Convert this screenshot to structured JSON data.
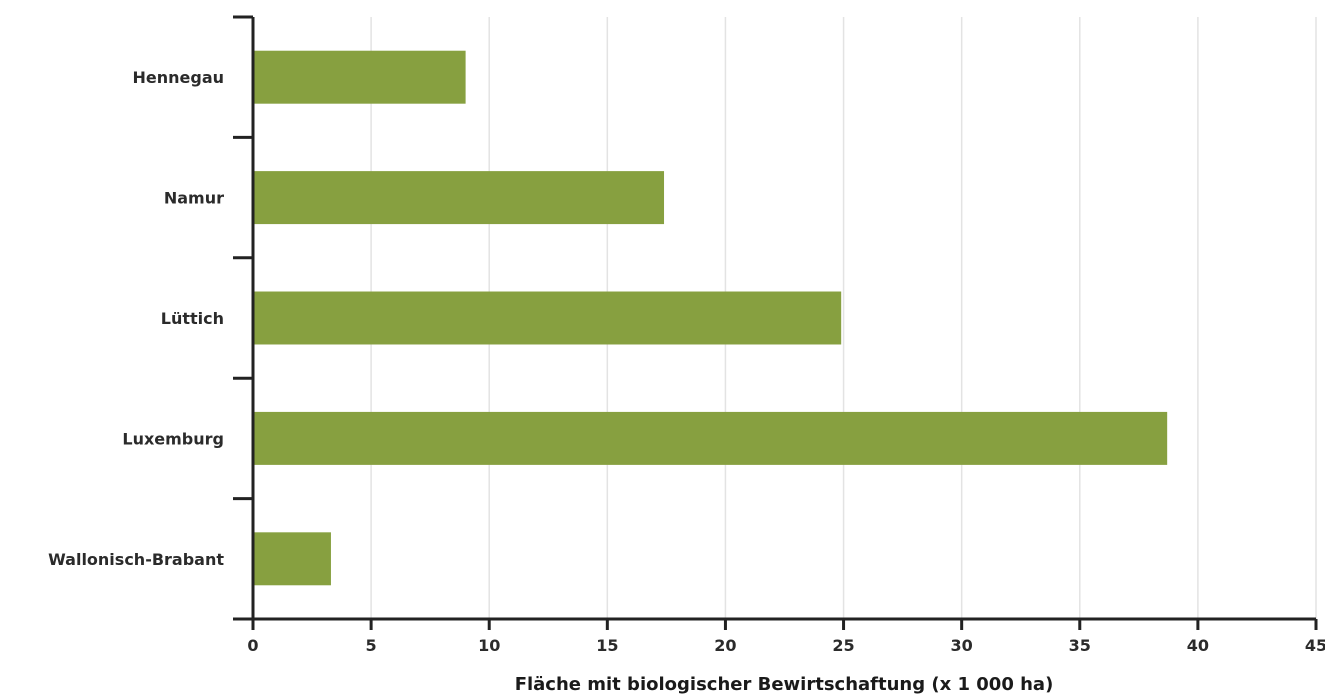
{
  "chart_data": {
    "type": "bar",
    "orientation": "horizontal",
    "categories": [
      "Hennegau",
      "Namur",
      "Lüttich",
      "Luxemburg",
      "Wallonisch-Brabant"
    ],
    "values": [
      9.0,
      17.4,
      24.9,
      38.7,
      3.3
    ],
    "xlabel": "Fläche mit biologischer Bewirtschaftung (x 1 000 ha)",
    "ylabel": "",
    "xlim": [
      0,
      45
    ],
    "x_ticks": [
      "0",
      "5",
      "10",
      "15",
      "20",
      "25",
      "30",
      "35",
      "40",
      "45"
    ],
    "grid": "vertical",
    "bar_color": "#87a040",
    "grid_color": "#e3e3e3",
    "axis_color": "#222222"
  }
}
